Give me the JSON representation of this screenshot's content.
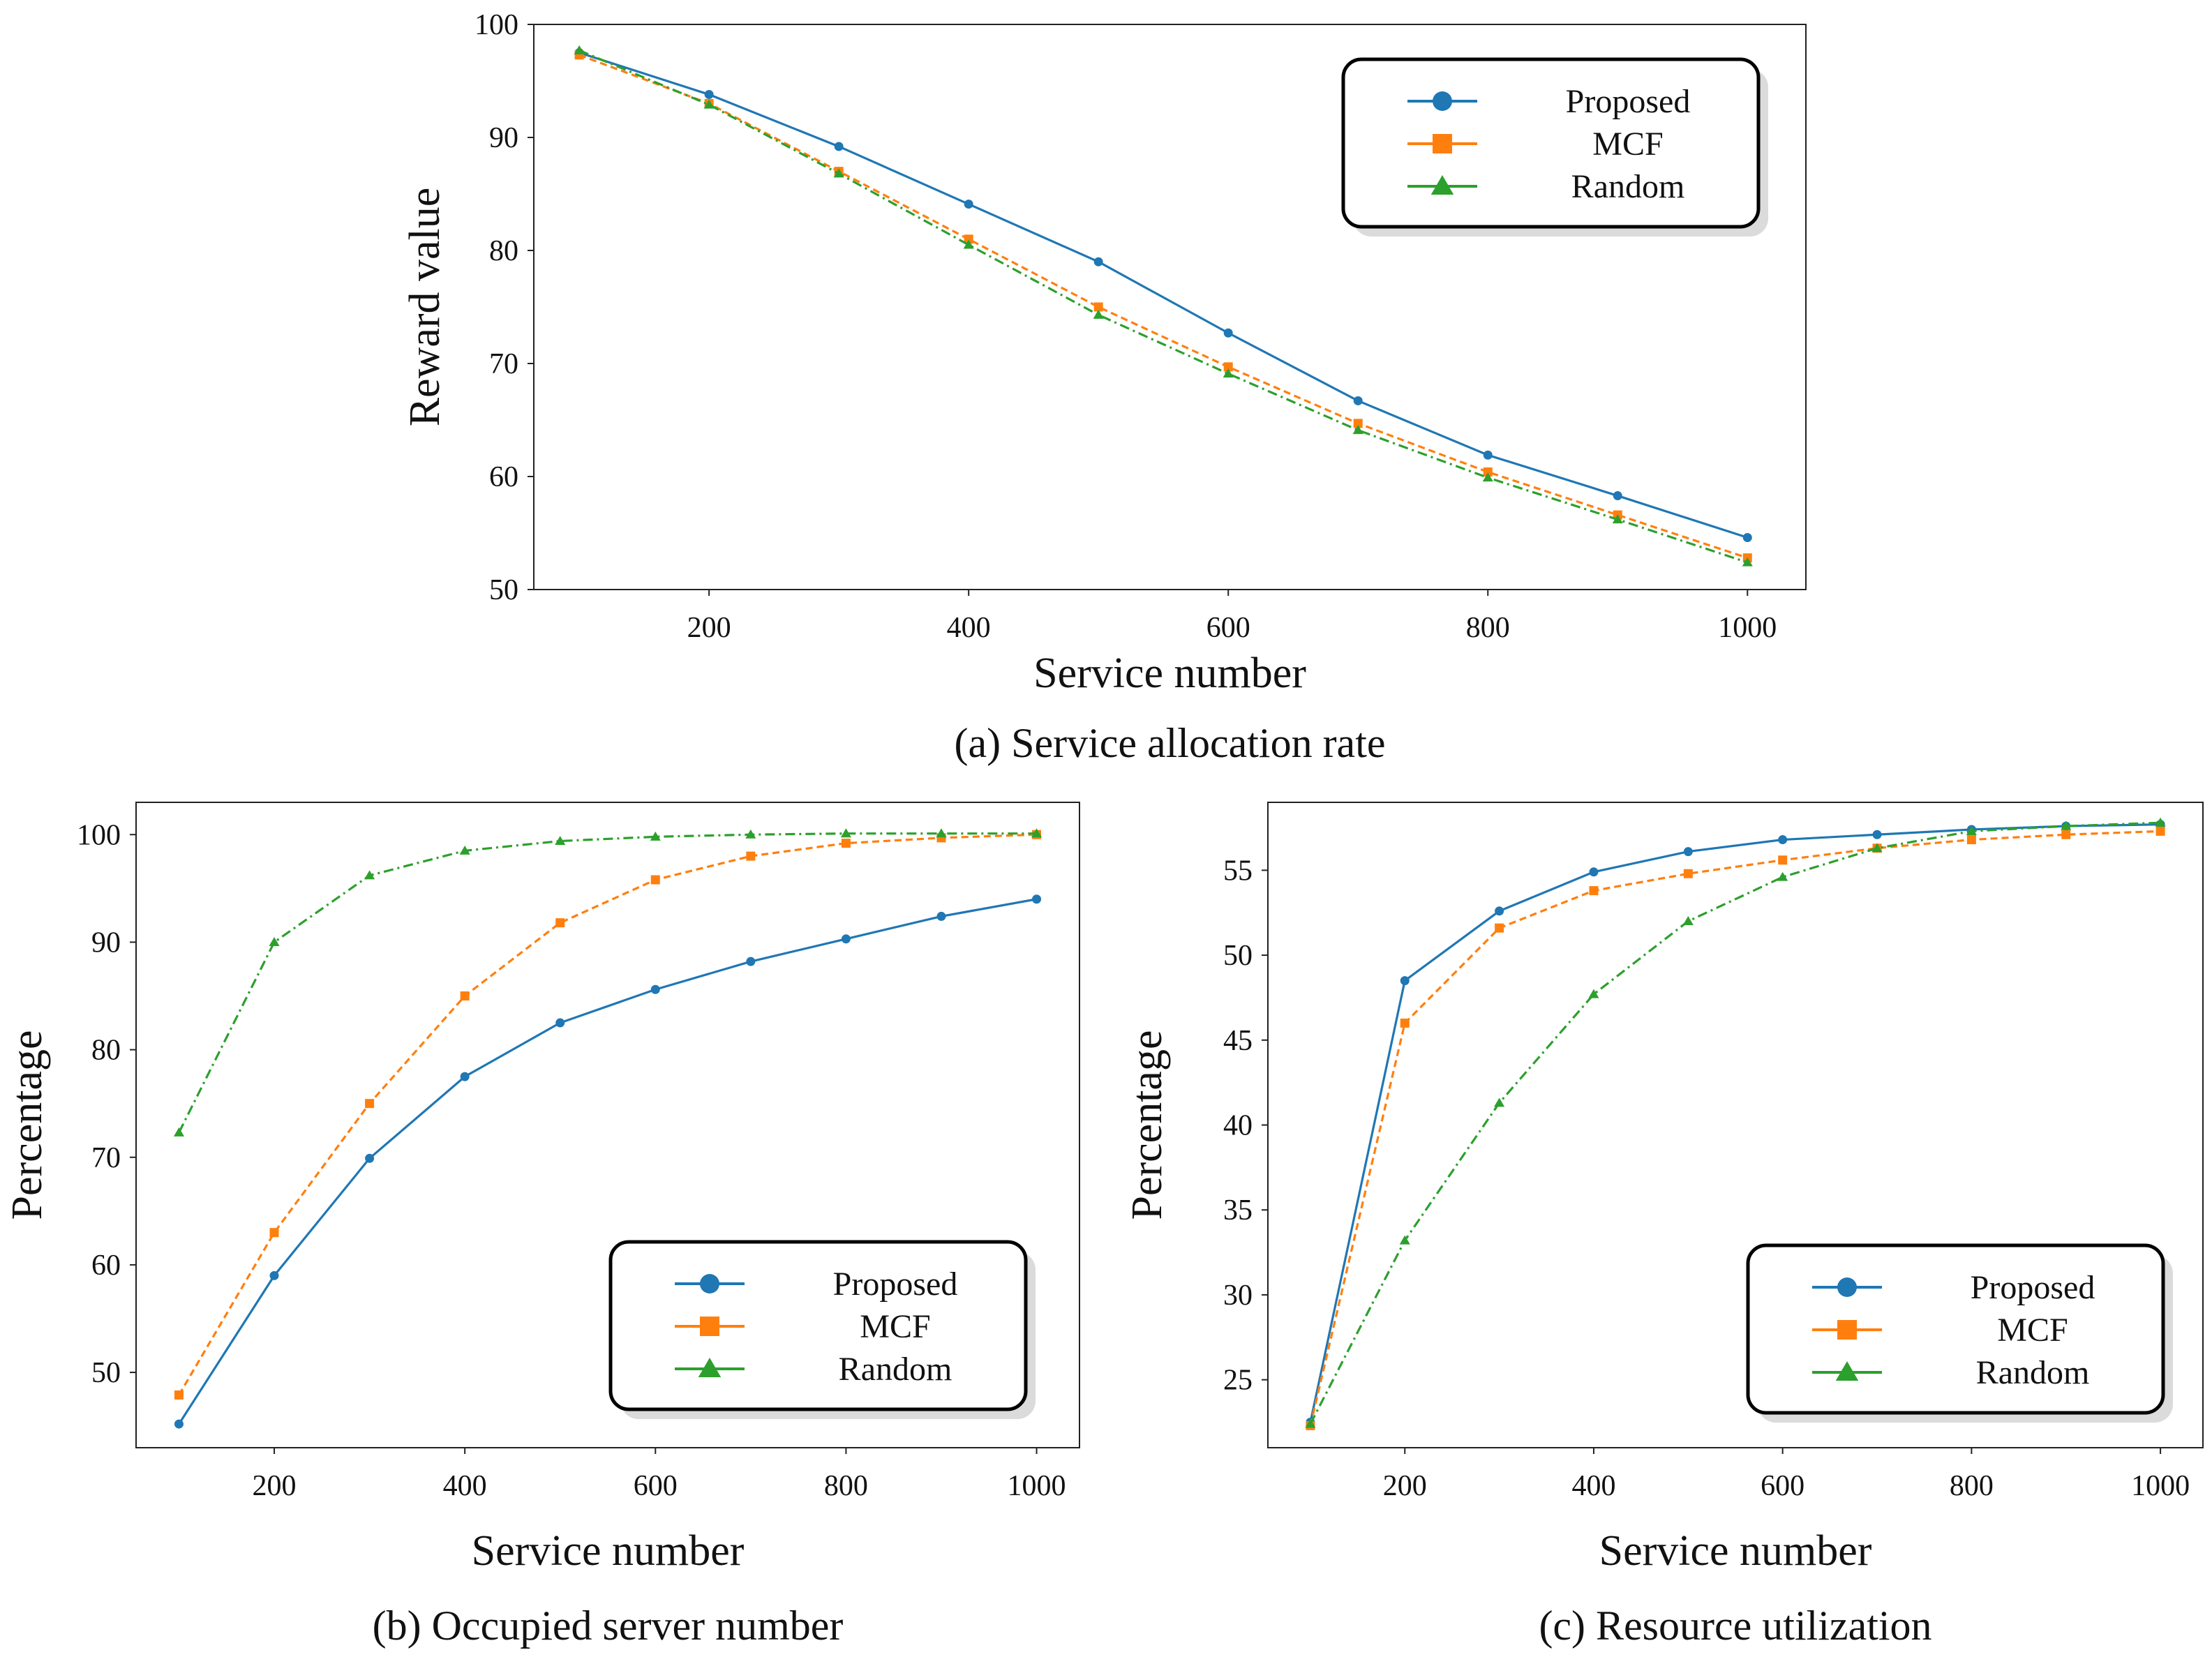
{
  "colors": {
    "proposed": "#1f77b4",
    "mcf": "#ff7f0e",
    "random": "#2ca02c"
  },
  "chart_data": [
    {
      "id": "a",
      "type": "line",
      "caption": "(a) Service allocation rate",
      "xlabel": "Service number",
      "ylabel": "Reward value",
      "xlim": [
        65,
        1045
      ],
      "ylim": [
        50,
        100
      ],
      "xticks": [
        200,
        400,
        600,
        800,
        1000
      ],
      "yticks": [
        50,
        60,
        70,
        80,
        90,
        100
      ],
      "legend_position": "upper-right",
      "x": [
        100,
        200,
        300,
        400,
        500,
        600,
        700,
        800,
        900,
        1000
      ],
      "series": [
        {
          "name": "Proposed",
          "style": "solid",
          "marker": "circle",
          "values": [
            97.5,
            93.8,
            89.2,
            84.1,
            79.0,
            72.7,
            66.7,
            61.9,
            58.3,
            54.6
          ]
        },
        {
          "name": "MCF",
          "style": "dashed",
          "marker": "square",
          "values": [
            97.3,
            93.0,
            87.0,
            81.0,
            75.0,
            69.7,
            64.7,
            60.4,
            56.6,
            52.8
          ]
        },
        {
          "name": "Random",
          "style": "dashdot",
          "marker": "triangle",
          "values": [
            97.7,
            92.9,
            86.8,
            80.5,
            74.3,
            69.1,
            64.1,
            59.9,
            56.2,
            52.4
          ]
        }
      ]
    },
    {
      "id": "b",
      "type": "line",
      "caption": "(b) Occupied server number",
      "xlabel": "Service number",
      "ylabel": "Percentage",
      "xlim": [
        55,
        1045
      ],
      "ylim": [
        43,
        103
      ],
      "xticks": [
        200,
        400,
        600,
        800,
        1000
      ],
      "yticks": [
        50,
        60,
        70,
        80,
        90,
        100
      ],
      "legend_position": "lower-right",
      "x": [
        100,
        200,
        300,
        400,
        500,
        600,
        700,
        800,
        900,
        1000
      ],
      "series": [
        {
          "name": "Proposed",
          "style": "solid",
          "marker": "circle",
          "values": [
            45.2,
            59.0,
            69.9,
            77.5,
            82.5,
            85.6,
            88.2,
            90.3,
            92.4,
            94.0
          ]
        },
        {
          "name": "MCF",
          "style": "dashed",
          "marker": "square",
          "values": [
            47.9,
            63.0,
            75.0,
            85.0,
            91.8,
            95.8,
            98.0,
            99.2,
            99.7,
            100.0
          ]
        },
        {
          "name": "Random",
          "style": "dashdot",
          "marker": "triangle",
          "values": [
            72.3,
            90.0,
            96.2,
            98.5,
            99.4,
            99.8,
            100.0,
            100.1,
            100.1,
            100.1
          ]
        }
      ]
    },
    {
      "id": "c",
      "type": "line",
      "caption": "(c) Resource utilization",
      "xlabel": "Service number",
      "ylabel": "Percentage",
      "xlim": [
        55,
        1045
      ],
      "ylim": [
        21,
        59
      ],
      "xticks": [
        200,
        400,
        600,
        800,
        1000
      ],
      "yticks": [
        25,
        30,
        35,
        40,
        45,
        50,
        55
      ],
      "legend_position": "lower-right",
      "x": [
        100,
        200,
        300,
        400,
        500,
        600,
        700,
        800,
        900,
        1000
      ],
      "series": [
        {
          "name": "Proposed",
          "style": "solid",
          "marker": "circle",
          "values": [
            22.5,
            48.5,
            52.6,
            54.9,
            56.1,
            56.8,
            57.1,
            57.4,
            57.6,
            57.7
          ]
        },
        {
          "name": "MCF",
          "style": "dashed",
          "marker": "square",
          "values": [
            22.3,
            46.0,
            51.6,
            53.8,
            54.8,
            55.6,
            56.3,
            56.8,
            57.1,
            57.3
          ]
        },
        {
          "name": "Random",
          "style": "dashdot",
          "marker": "triangle",
          "values": [
            22.4,
            33.2,
            41.3,
            47.7,
            52.0,
            54.6,
            56.3,
            57.3,
            57.6,
            57.8
          ]
        }
      ]
    }
  ]
}
